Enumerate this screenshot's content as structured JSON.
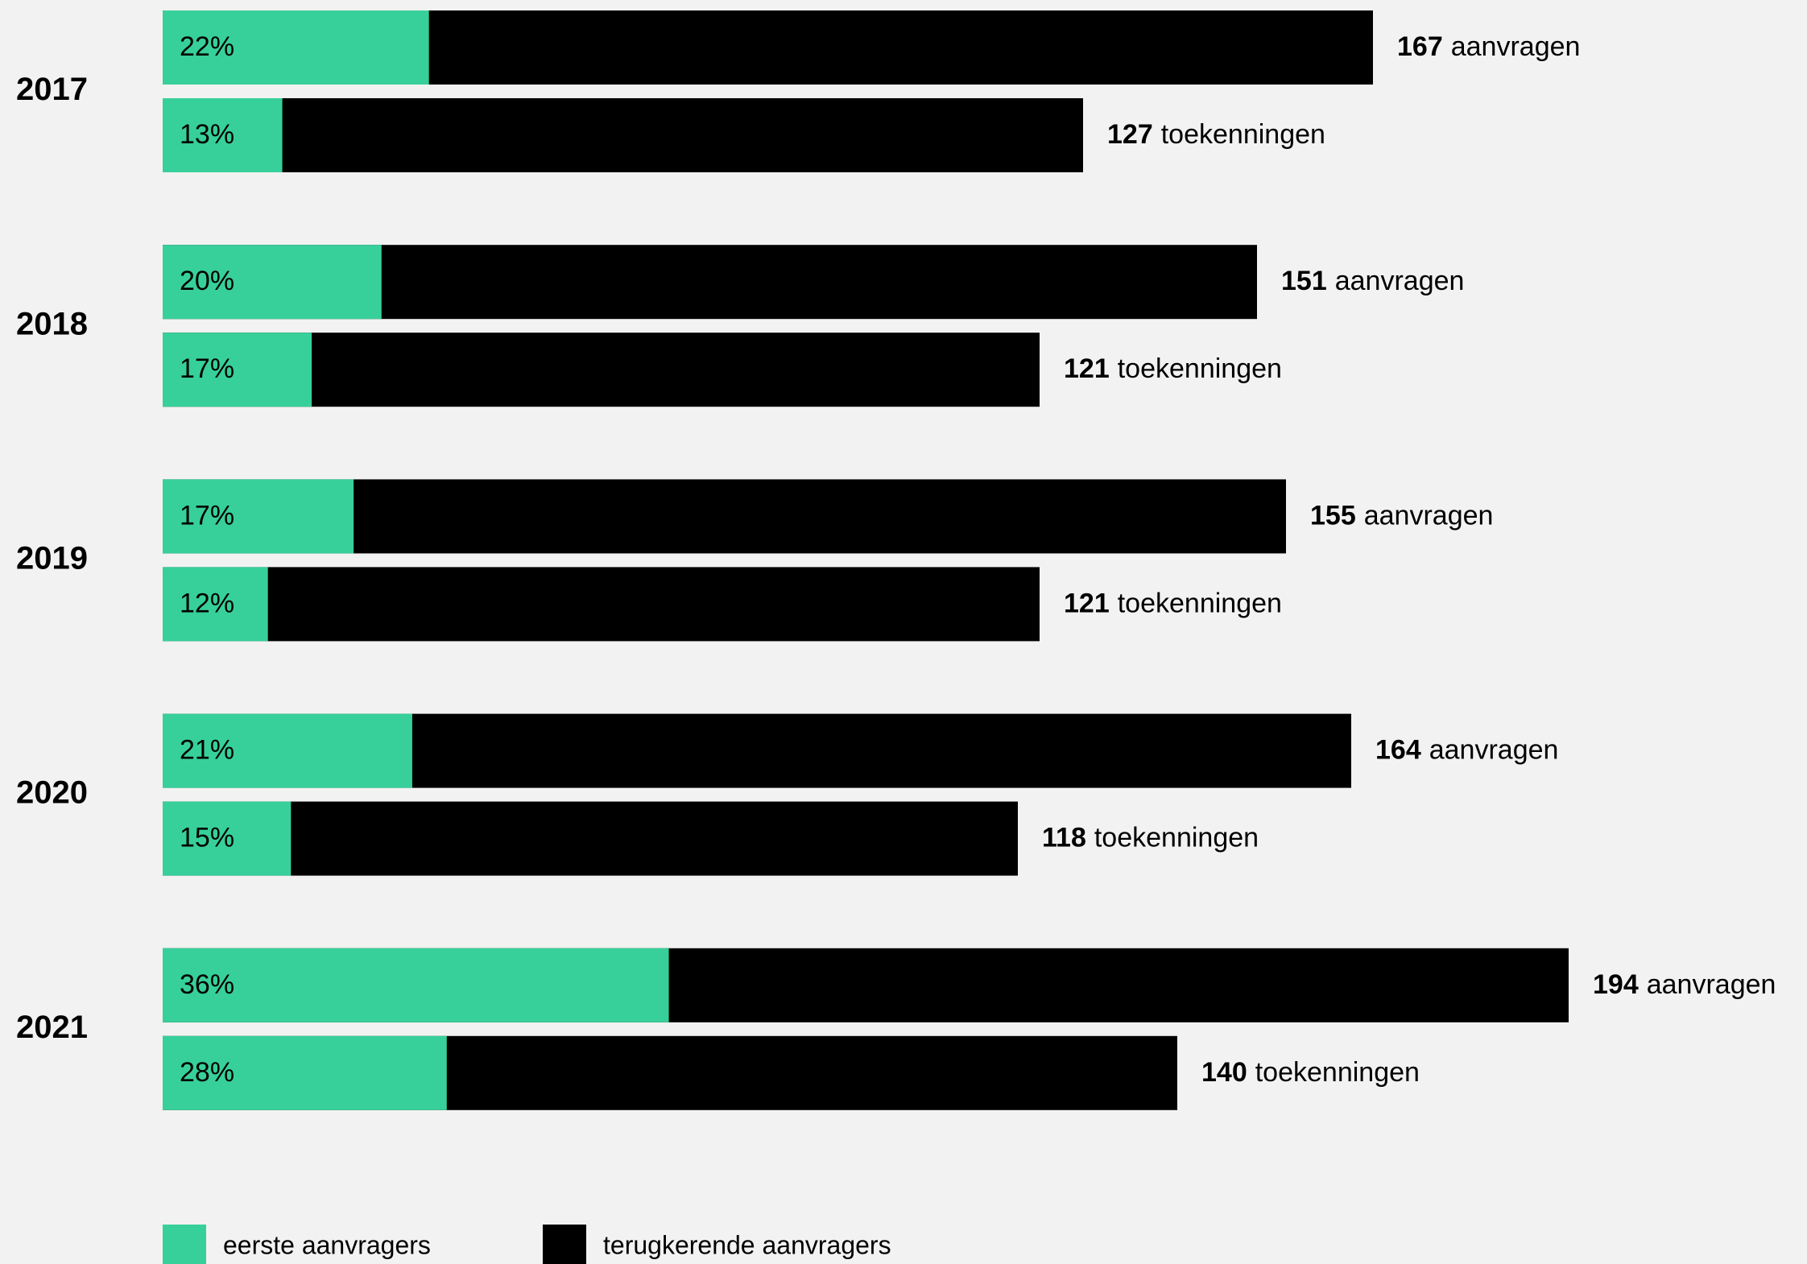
{
  "chart_data": {
    "type": "bar",
    "categories": [
      "2017",
      "2018",
      "2019",
      "2020",
      "2021"
    ],
    "series": [
      {
        "name": "aanvragen",
        "values": [
          167,
          151,
          155,
          164,
          194
        ],
        "share": {
          "values": [
            22,
            20,
            17,
            21,
            36
          ],
          "value_labels": [
            "22%",
            "20%",
            "17%",
            "21%",
            "36%"
          ]
        }
      },
      {
        "name": "toekenningen",
        "values": [
          127,
          121,
          121,
          118,
          140
        ],
        "share": {
          "values": [
            13,
            17,
            12,
            15,
            28
          ],
          "value_labels": [
            "13%",
            "17%",
            "12%",
            "15%",
            "28%"
          ]
        }
      }
    ],
    "legend": [
      {
        "name": "eerste aanvragers",
        "color": "#37d09a"
      },
      {
        "name": "terugkerende aanvragers",
        "color": "#000000"
      }
    ]
  }
}
